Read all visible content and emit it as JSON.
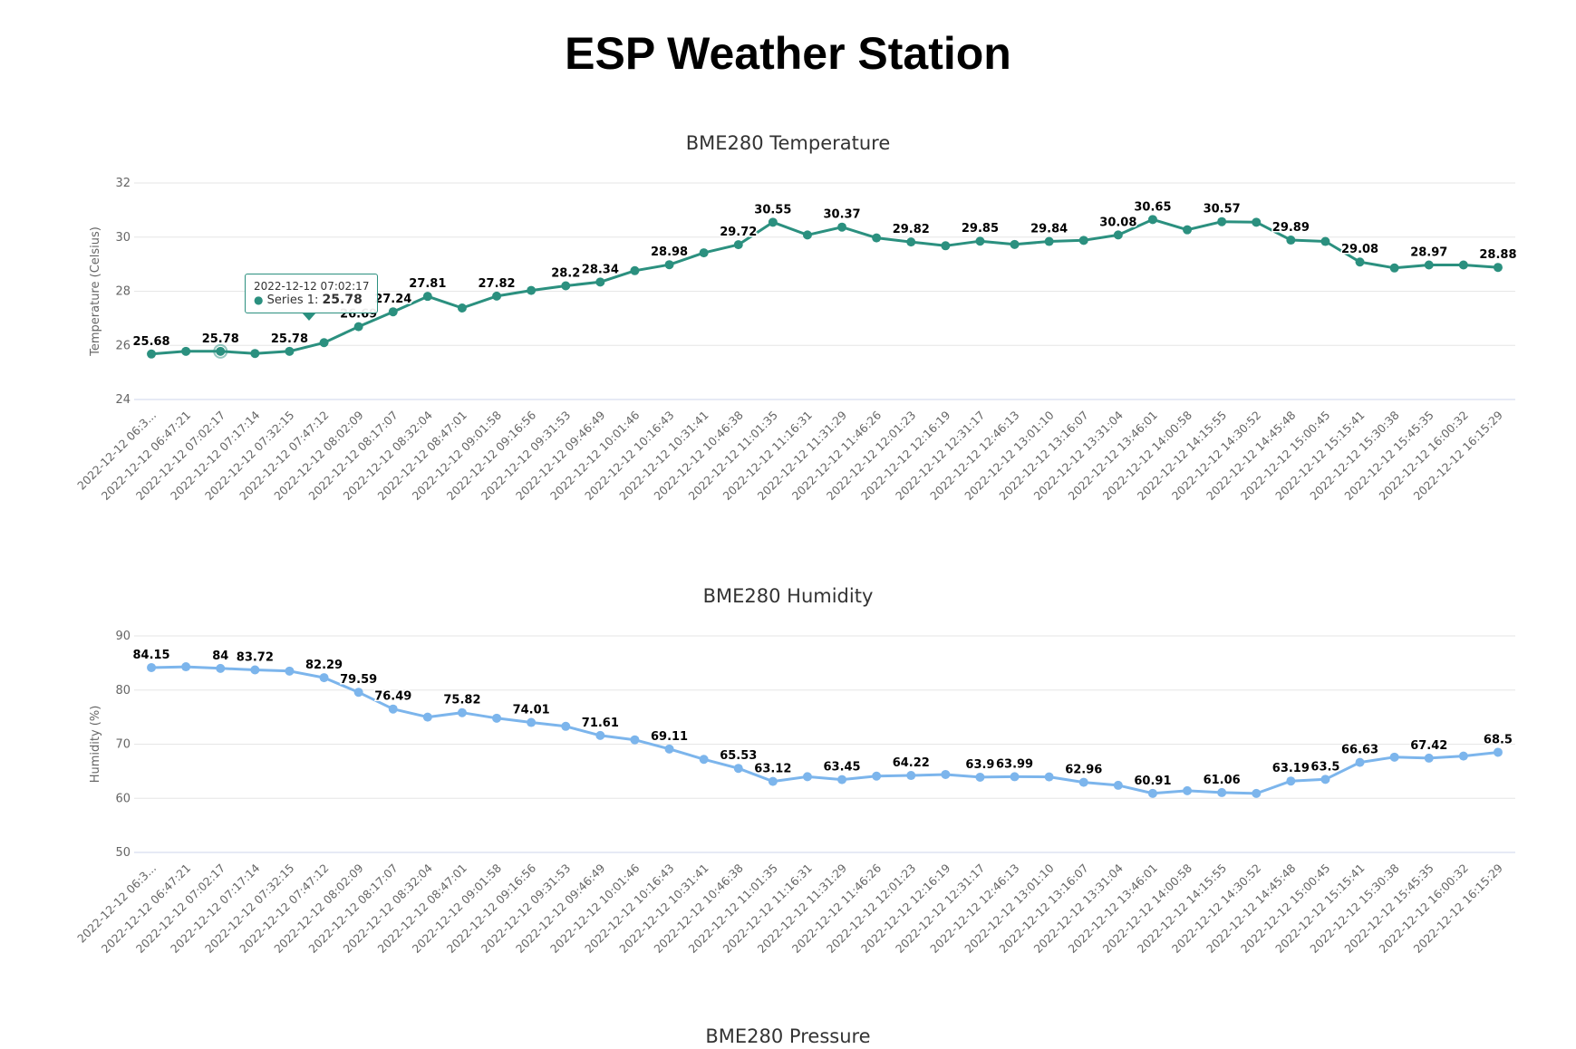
{
  "page": {
    "title": "ESP Weather Station"
  },
  "charts": {
    "temperature": {
      "title": "BME280 Temperature",
      "ylabel": "Temperature (Celsius)",
      "color": "#2b907f",
      "ylim": [
        24,
        32
      ],
      "yticks": [
        24,
        26,
        28,
        30,
        32
      ]
    },
    "humidity": {
      "title": "BME280 Humidity",
      "ylabel": "Humidity (%)",
      "color": "#7cb5ec",
      "ylim": [
        50,
        90
      ],
      "yticks": [
        50,
        60,
        70,
        80,
        90
      ]
    },
    "pressure": {
      "title": "BME280 Pressure"
    }
  },
  "tooltip": {
    "time": "2022-12-12 07:02:17",
    "series": "Series 1: ",
    "value": "25.78"
  },
  "chart_data": [
    {
      "type": "line",
      "title": "BME280 Temperature",
      "xlabel": "",
      "ylabel": "Temperature (Celsius)",
      "ylim": [
        24,
        32
      ],
      "grid": true,
      "categories": [
        "2022-12-12 06:3...",
        "2022-12-12 06:47:21",
        "2022-12-12 07:02:17",
        "2022-12-12 07:17:14",
        "2022-12-12 07:32:15",
        "2022-12-12 07:47:12",
        "2022-12-12 08:02:09",
        "2022-12-12 08:17:07",
        "2022-12-12 08:32:04",
        "2022-12-12 08:47:01",
        "2022-12-12 09:01:58",
        "2022-12-12 09:16:56",
        "2022-12-12 09:31:53",
        "2022-12-12 09:46:49",
        "2022-12-12 10:01:46",
        "2022-12-12 10:16:43",
        "2022-12-12 10:31:41",
        "2022-12-12 10:46:38",
        "2022-12-12 11:01:35",
        "2022-12-12 11:16:31",
        "2022-12-12 11:31:29",
        "2022-12-12 11:46:26",
        "2022-12-12 12:01:23",
        "2022-12-12 12:16:19",
        "2022-12-12 12:31:17",
        "2022-12-12 12:46:13",
        "2022-12-12 13:01:10",
        "2022-12-12 13:16:07",
        "2022-12-12 13:31:04",
        "2022-12-12 13:46:01",
        "2022-12-12 14:00:58",
        "2022-12-12 14:15:55",
        "2022-12-12 14:30:52",
        "2022-12-12 14:45:48",
        "2022-12-12 15:00:45",
        "2022-12-12 15:15:41",
        "2022-12-12 15:30:38",
        "2022-12-12 15:45:35",
        "2022-12-12 16:00:32",
        "2022-12-12 16:15:29"
      ],
      "values": [
        25.68,
        25.78,
        25.78,
        25.7,
        25.78,
        26.1,
        26.69,
        27.24,
        27.81,
        27.38,
        27.82,
        28.03,
        28.2,
        28.34,
        28.76,
        28.98,
        29.42,
        29.72,
        30.55,
        30.08,
        30.37,
        29.97,
        29.82,
        29.68,
        29.85,
        29.73,
        29.84,
        29.88,
        30.08,
        30.65,
        30.27,
        30.57,
        30.55,
        29.89,
        29.84,
        29.08,
        28.86,
        28.97,
        28.97,
        28.88
      ],
      "labels": [
        "25.68",
        "",
        "25.78",
        "",
        "25.78",
        "",
        "26.69",
        "27.24",
        "27.81",
        "",
        "27.82",
        "",
        "28.2",
        "28.34",
        "",
        "28.98",
        "",
        "29.72",
        "30.55",
        "",
        "30.37",
        "",
        "29.82",
        "",
        "29.85",
        "",
        "29.84",
        "",
        "30.08",
        "30.65",
        "",
        "30.57",
        "",
        "29.89",
        "",
        "29.08",
        "",
        "28.97",
        "",
        "28.88"
      ]
    },
    {
      "type": "line",
      "title": "BME280 Humidity",
      "xlabel": "",
      "ylabel": "Humidity (%)",
      "ylim": [
        50,
        90
      ],
      "grid": true,
      "categories": [
        "2022-12-12 06:3...",
        "2022-12-12 06:47:21",
        "2022-12-12 07:02:17",
        "2022-12-12 07:17:14",
        "2022-12-12 07:32:15",
        "2022-12-12 07:47:12",
        "2022-12-12 08:02:09",
        "2022-12-12 08:17:07",
        "2022-12-12 08:32:04",
        "2022-12-12 08:47:01",
        "2022-12-12 09:01:58",
        "2022-12-12 09:16:56",
        "2022-12-12 09:31:53",
        "2022-12-12 09:46:49",
        "2022-12-12 10:01:46",
        "2022-12-12 10:16:43",
        "2022-12-12 10:31:41",
        "2022-12-12 10:46:38",
        "2022-12-12 11:01:35",
        "2022-12-12 11:16:31",
        "2022-12-12 11:31:29",
        "2022-12-12 11:46:26",
        "2022-12-12 12:01:23",
        "2022-12-12 12:16:19",
        "2022-12-12 12:31:17",
        "2022-12-12 12:46:13",
        "2022-12-12 13:01:10",
        "2022-12-12 13:16:07",
        "2022-12-12 13:31:04",
        "2022-12-12 13:46:01",
        "2022-12-12 14:00:58",
        "2022-12-12 14:15:55",
        "2022-12-12 14:30:52",
        "2022-12-12 14:45:48",
        "2022-12-12 15:00:45",
        "2022-12-12 15:15:41",
        "2022-12-12 15:30:38",
        "2022-12-12 15:45:35",
        "2022-12-12 16:00:32",
        "2022-12-12 16:15:29"
      ],
      "values": [
        84.15,
        84.3,
        84.0,
        83.72,
        83.5,
        82.29,
        79.59,
        76.49,
        75.0,
        75.82,
        74.8,
        74.01,
        73.3,
        71.61,
        70.8,
        69.11,
        67.2,
        65.53,
        63.12,
        64.0,
        63.45,
        64.1,
        64.22,
        64.4,
        63.9,
        63.99,
        63.95,
        62.96,
        62.4,
        60.91,
        61.4,
        61.06,
        60.9,
        63.19,
        63.5,
        66.63,
        67.6,
        67.42,
        67.8,
        68.5
      ],
      "labels": [
        "84.15",
        "",
        "84",
        "83.72",
        "",
        "82.29",
        "79.59",
        "76.49",
        "",
        "75.82",
        "",
        "74.01",
        "",
        "71.61",
        "",
        "69.11",
        "",
        "65.53",
        "63.12",
        "",
        "63.45",
        "",
        "64.22",
        "",
        "63.9",
        "63.99",
        "",
        "62.96",
        "",
        "60.91",
        "",
        "61.06",
        "",
        "63.19",
        "63.5",
        "66.63",
        "",
        "67.42",
        "",
        "68.5"
      ]
    }
  ]
}
